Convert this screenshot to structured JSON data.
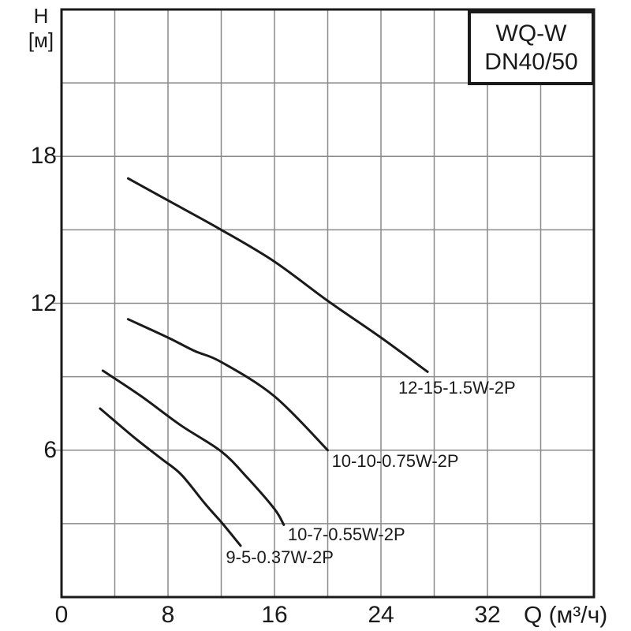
{
  "title_box": {
    "line1": "WQ-W",
    "line2": "DN40/50"
  },
  "y_axis": {
    "title_line1": "H",
    "title_line2": "[м]",
    "tick_labels": [
      18,
      12,
      6
    ]
  },
  "x_axis": {
    "title": "Q (м³/ч)",
    "tick_labels": [
      0,
      8,
      16,
      24,
      32
    ]
  },
  "colors": {
    "background": "#ffffff",
    "axis": "#1a1a1a",
    "grid": "#8a8a8a",
    "curve": "#1a1a1a",
    "text": "#1a1a1a"
  },
  "chart_data": {
    "type": "line",
    "title": "WQ-W DN40/50",
    "xlabel": "Q (м³/ч)",
    "ylabel": "H [м]",
    "xlim": [
      0,
      40
    ],
    "ylim": [
      0,
      24
    ],
    "x_grid_step": 4,
    "y_grid_step": 3,
    "x_tick_labels": [
      0,
      8,
      16,
      24,
      32
    ],
    "y_tick_labels": [
      6,
      12,
      18
    ],
    "grid": true,
    "legend_position": "inline-labels",
    "series": [
      {
        "name": "12-15-1.5W-2P",
        "points": [
          [
            5,
            17.1
          ],
          [
            8,
            16.2
          ],
          [
            12,
            15.0
          ],
          [
            16,
            13.7
          ],
          [
            20,
            12.1
          ],
          [
            24,
            10.6
          ],
          [
            27.5,
            9.2
          ]
        ],
        "label_anchor": [
          25.3,
          8.55
        ]
      },
      {
        "name": "10-10-0.75W-2P",
        "points": [
          [
            5,
            11.35
          ],
          [
            8,
            10.6
          ],
          [
            10,
            10.05
          ],
          [
            12,
            9.6
          ],
          [
            16,
            8.2
          ],
          [
            20,
            6.0
          ]
        ],
        "label_anchor": [
          20.3,
          5.55
        ]
      },
      {
        "name": "10-7-0.55W-2P",
        "points": [
          [
            3.1,
            9.25
          ],
          [
            6,
            8.2
          ],
          [
            9,
            7.0
          ],
          [
            12,
            5.95
          ],
          [
            14,
            4.85
          ],
          [
            16,
            3.6
          ],
          [
            16.7,
            2.95
          ]
        ],
        "label_anchor": [
          17.0,
          2.55
        ]
      },
      {
        "name": "9-5-0.37W-2P",
        "points": [
          [
            2.9,
            7.7
          ],
          [
            5.5,
            6.5
          ],
          [
            7.5,
            5.65
          ],
          [
            9,
            5.0
          ],
          [
            10.8,
            3.8
          ],
          [
            12.1,
            3.0
          ],
          [
            13.45,
            2.1
          ]
        ],
        "label_anchor": [
          12.35,
          1.6
        ]
      }
    ]
  }
}
